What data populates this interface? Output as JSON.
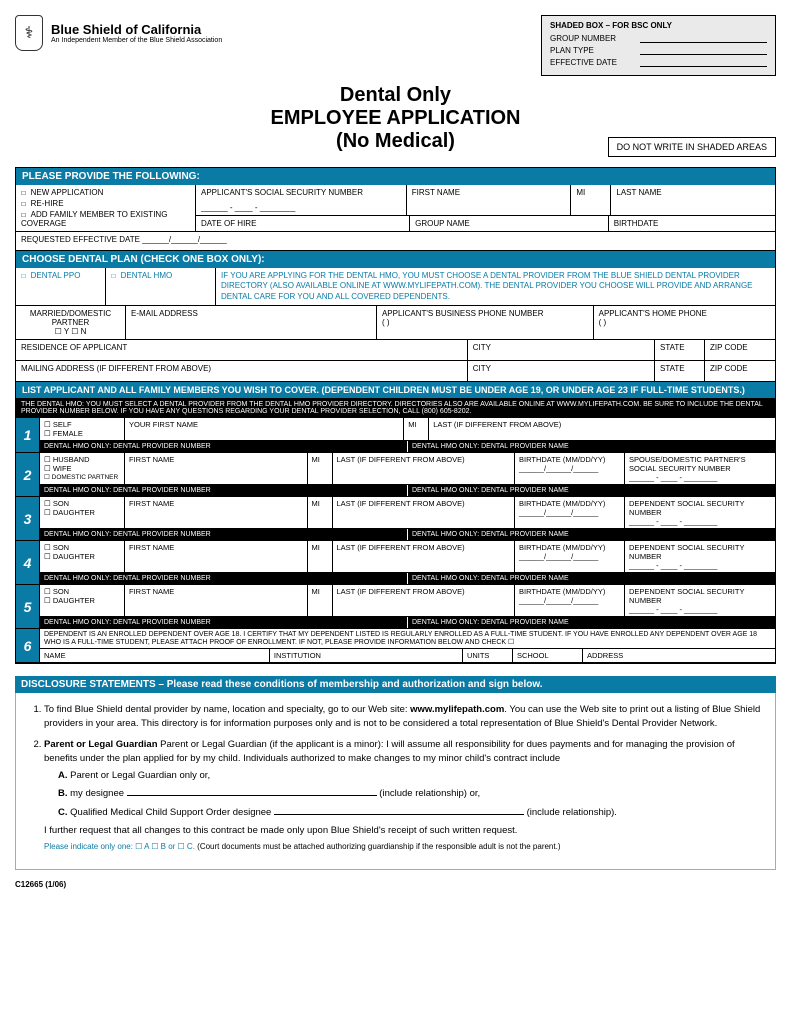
{
  "org": {
    "name": "Blue Shield of California",
    "sub": "An Independent Member of the Blue Shield Association"
  },
  "shaded": {
    "hdr": "SHADED BOX – FOR BSC ONLY",
    "f1": "GROUP NUMBER",
    "f2": "PLAN TYPE",
    "f3": "EFFECTIVE DATE"
  },
  "title": {
    "l1": "Dental Only",
    "l2": "EMPLOYEE APPLICATION",
    "l3": "(No Medical)",
    "note": "DO NOT WRITE IN SHADED AREAS"
  },
  "s1": {
    "hdr": "PLEASE PROVIDE THE FOLLOWING:",
    "new": "NEW APPLICATION",
    "rehire": "RE-HIRE",
    "addfam": "ADD FAMILY MEMBER TO EXISTING COVERAGE",
    "ssn": "APPLICANT'S SOCIAL SECURITY NUMBER",
    "first": "FIRST NAME",
    "mi": "MI",
    "last": "LAST NAME",
    "hire": "DATE OF HIRE",
    "group": "GROUP NAME",
    "bdate": "BIRTHDATE",
    "req": "REQUESTED EFFECTIVE DATE ______/______/______"
  },
  "s2": {
    "hdr": "CHOOSE DENTAL PLAN (CHECK ONE BOX ONLY):",
    "ppo": "DENTAL PPO",
    "hmo": "DENTAL HMO",
    "note": "IF YOU ARE APPLYING FOR THE DENTAL HMO, YOU MUST CHOOSE A DENTAL PROVIDER FROM THE BLUE SHIELD DENTAL PROVIDER DIRECTORY (ALSO AVAILABLE ONLINE AT WWW.MYLIFEPATH.COM). THE DENTAL PROVIDER YOU CHOOSE WILL PROVIDE AND ARRANGE DENTAL CARE FOR YOU AND ALL COVERED DEPENDENTS.",
    "married": "MARRIED/DOMESTIC PARTNER",
    "yn": "☐ Y   ☐ N",
    "email": "E-MAIL ADDRESS",
    "bphone": "APPLICANT'S BUSINESS PHONE NUMBER",
    "hphone": "APPLICANT'S HOME PHONE",
    "paren": "(        )",
    "res": "RESIDENCE OF APPLICANT",
    "mail": "MAILING ADDRESS (IF DIFFERENT FROM ABOVE)",
    "city": "CITY",
    "state": "STATE",
    "zip": "ZIP CODE"
  },
  "s3": {
    "hdr": "LIST APPLICANT AND ALL FAMILY MEMBERS YOU WISH TO COVER. (DEPENDENT CHILDREN MUST BE UNDER AGE 19, OR UNDER AGE 23 IF FULL-TIME STUDENTS.)",
    "dark": "THE DENTAL HMO: YOU MUST SELECT A DENTAL PROVIDER FROM THE DENTAL HMO PROVIDER DIRECTORY. DIRECTORIES ALSO ARE AVAILABLE ONLINE AT WWW.MYLIFEPATH.COM. BE SURE TO INCLUDE THE DENTAL PROVIDER NUMBER BELOW. IF YOU HAVE ANY QUESTIONS REGARDING YOUR DENTAL PROVIDER SELECTION, CALL (800) 605-8202.",
    "self_m": "SELF",
    "self_f": "FEMALE",
    "yfn": "YOUR FIRST NAME",
    "mi": "MI",
    "last": "LAST (IF DIFFERENT FROM ABOVE)",
    "prov_num": "DENTAL HMO ONLY: DENTAL PROVIDER NUMBER",
    "prov_name": "DENTAL HMO ONLY: DENTAL PROVIDER NAME",
    "husband": "HUSBAND",
    "wife": "WIFE",
    "dompart": "DOMESTIC PARTNER",
    "fn": "FIRST NAME",
    "bdate": "BIRTHDATE (MM/DD/YY)",
    "bdate_line": "______/______/______",
    "spouse_ssn": "SPOUSE/DOMESTIC PARTNER'S SOCIAL SECURITY NUMBER",
    "ssn_line": "______ - ____ - ________",
    "son": "SON",
    "dau": "DAUGHTER",
    "dep_ssn": "DEPENDENT SOCIAL SECURITY NUMBER",
    "r6": "DEPENDENT IS AN ENROLLED DEPENDENT OVER AGE 18. I CERTIFY THAT MY DEPENDENT LISTED IS REGULARLY ENROLLED AS A FULL-TIME STUDENT. IF YOU HAVE ENROLLED ANY DEPENDENT OVER AGE 18 WHO IS A FULL-TIME STUDENT, PLEASE ATTACH PROOF OF ENROLLMENT. IF NOT, PLEASE PROVIDE INFORMATION BELOW AND CHECK ☐",
    "r6_name": "NAME",
    "r6_inst": "INSTITUTION",
    "r6_units": "UNITS",
    "r6_sch": "SCHOOL",
    "r6_addr": "ADDRESS"
  },
  "disc": {
    "hdr": "DISCLOSURE STATEMENTS – Please read these conditions of membership and authorization and sign below.",
    "p1a": "To find Blue Shield dental provider by name, location and specialty, go to our Web site: ",
    "p1b": "www.mylifepath.com",
    "p1c": ". You can use the Web site to print out a listing of Blue Shield providers in your area. This directory is for information purposes only and is not to be considered a total representation of Blue Shield's Dental Provider Network.",
    "p2": "Parent or Legal Guardian (if the applicant is a minor): I will assume all responsibility for dues payments and for managing the provision of benefits under the plan applied for by my child. Individuals authorized to make changes to my minor child's contract include",
    "a": "Parent or Legal Guardian only or,",
    "b1": "my designee ",
    "b2": " (include relationship) or,",
    "c1": "Qualified Medical Child Support Order designee ",
    "c2": " (include relationship).",
    "further": "I further request that all changes to this contract be made only upon Blue Shield's receipt of such written request.",
    "ind1": "Please indicate only one: ",
    "opts": "☐ A   ☐ B or   ☐ C.",
    "ind2": " (Court documents must be attached authorizing guardianship if the responsible adult is not the parent.)"
  },
  "footer": "C12665 (1/06)"
}
